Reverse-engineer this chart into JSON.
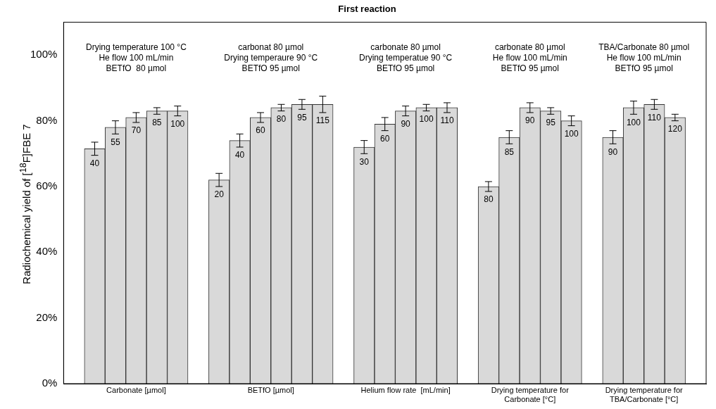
{
  "chart_data": {
    "type": "bar",
    "title": "First reaction",
    "ylabel": "Radiochemical yield of [$^{18}$F]FBE 7",
    "categories": [
      null,
      "40",
      "55",
      "70",
      "85",
      "100",
      null,
      "20",
      "40",
      "60",
      "80",
      "95",
      "115",
      null,
      "30",
      "60",
      "90",
      "100",
      "110",
      null,
      "80",
      "85",
      "90",
      "95",
      "100",
      null,
      "90",
      "100",
      "110",
      "120",
      null
    ],
    "values": [
      null,
      71.5,
      78,
      81,
      83,
      83,
      null,
      62,
      74,
      81,
      84,
      85,
      85,
      null,
      72,
      79,
      83,
      84,
      84,
      null,
      60,
      75,
      84,
      83,
      80,
      null,
      75,
      84,
      85,
      81,
      null
    ],
    "errors": [
      null,
      2,
      2,
      1.5,
      1,
      1.5,
      null,
      2,
      2,
      1.5,
      1,
      1.5,
      2.5,
      null,
      2,
      2,
      1.5,
      1,
      1.5,
      null,
      1.5,
      2,
      1.5,
      1,
      1.5,
      null,
      2,
      2,
      1.5,
      1,
      null
    ],
    "color": "#d9d9d9",
    "ylim": [
      0,
      110
    ],
    "yticks": [
      {
        "value": 0,
        "label": "0%"
      },
      {
        "value": 20,
        "label": "20%"
      },
      {
        "value": 40,
        "label": "40%"
      },
      {
        "value": 60,
        "label": "60%"
      },
      {
        "value": 80,
        "label": "80%"
      },
      {
        "value": 100,
        "label": "100%"
      }
    ],
    "grid": false,
    "legend": false,
    "annotations": [
      "Drying temperature 100 °C\nHe flow 100 mL/min\nBETfO  80 µmol",
      "carbonat 80 µmol\nDrying temperaure 90 °C\nBETfO 95 µmol",
      "carbonate 80 µmol\nDrying temperatue 90 °C\nBETfO 95 µmol",
      "carbonate 80 µmol\nHe flow 100 mL/min\nBETfO 95 µmol",
      "TBA/Carbonate 80 µmol\nHe flow 100 mL/min\nBETfO 95 µmol",
      "Carbonate [µmol]",
      "BETfO [µmol]",
      "Helium flow rate  [mL/min]",
      "Drying temperature for\nCarbonate [°C]",
      "Drying temperature for\nTBA/Carbonate [°C]"
    ]
  }
}
